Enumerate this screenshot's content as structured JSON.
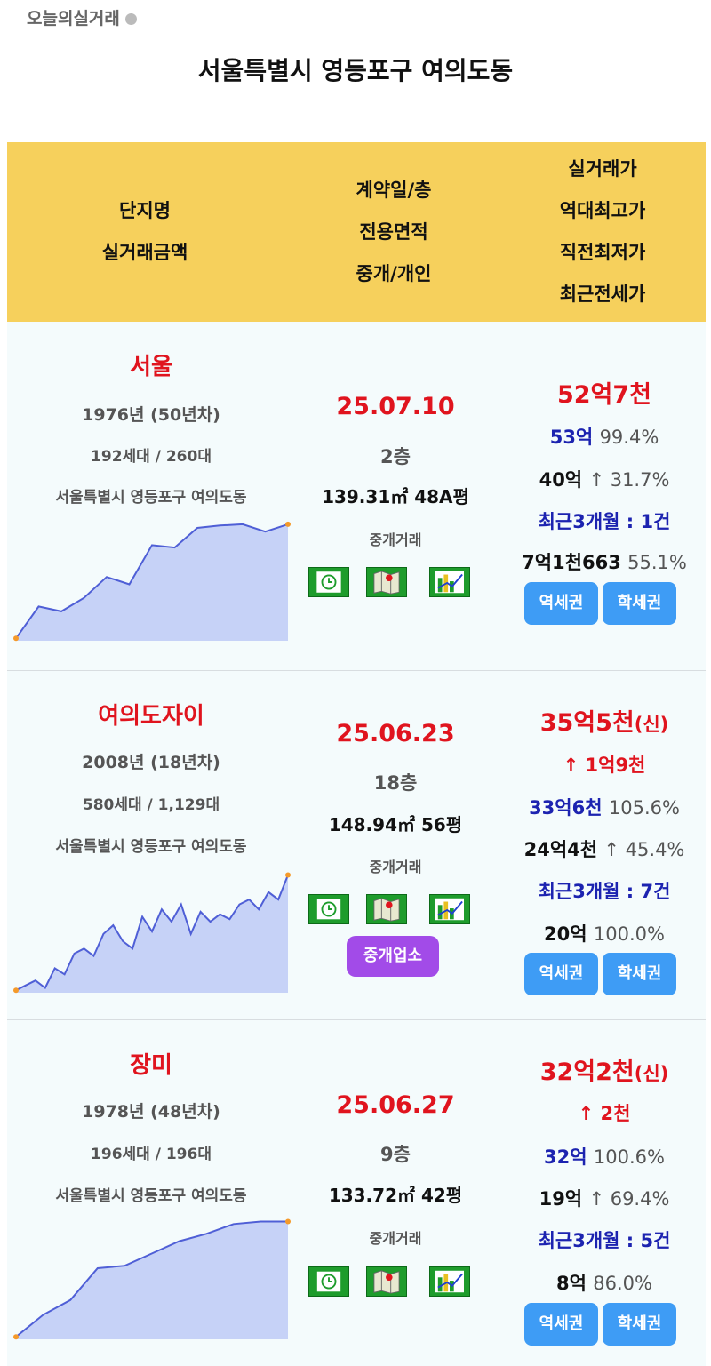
{
  "brand": "오늘의실거래",
  "title": "서울특별시 영등포구 여의도동",
  "header": {
    "col1": [
      "단지명",
      "실거래금액"
    ],
    "col2": [
      "계약일/층",
      "전용면적",
      "중개/개인"
    ],
    "col3": [
      "실거래가",
      "역대최고가",
      "직전최저가",
      "최근전세가"
    ]
  },
  "buttons": {
    "station": "역세권",
    "school": "학세권",
    "broker": "중개업소"
  },
  "icons": [
    "clock-icon",
    "map-icon",
    "chart-icon"
  ],
  "colors": {
    "header_bg": "#f6d05c",
    "accent_red": "#e0141e",
    "accent_blue": "#1c23b0",
    "button_blue": "#3e9cf5",
    "button_purple": "#a24be8",
    "icon_green": "#1e9c2c"
  },
  "rows": [
    {
      "name": "서울",
      "year": "1976년 (50년차)",
      "households": "192세대 / 260대",
      "address": "서울특별시 영등포구 여의도동",
      "date": "25.07.10",
      "floor": "2층",
      "area": "139.31㎡ 48A평",
      "type": "중개거래",
      "price": "52억7천",
      "price_suffix": "",
      "change": "",
      "high_amount": "53억",
      "high_ratio": "99.4%",
      "low_amount": "40억",
      "low_ratio": "↑ 31.7%",
      "recent": "최근3개월 : 1건",
      "jeonse_amount": "7억1천663",
      "jeonse_ratio": "55.1%",
      "trend": [
        2,
        28,
        24,
        35,
        52,
        46,
        78,
        76,
        92,
        94,
        95,
        89,
        95
      ]
    },
    {
      "name": "여의도자이",
      "year": "2008년 (18년차)",
      "households": "580세대 / 1,129대",
      "address": "서울특별시 영등포구 여의도동",
      "date": "25.06.23",
      "floor": "18층",
      "area": "148.94㎡ 56평",
      "type": "중개거래",
      "price": "35억5천",
      "price_suffix": "(신)",
      "change": "↑ 1억9천",
      "high_amount": "33억6천",
      "high_ratio": "105.6%",
      "low_amount": "24억4천",
      "low_ratio": "↑ 45.4%",
      "recent": "최근3개월 : 7건",
      "jeonse_amount": "20억",
      "jeonse_ratio": "100.0%",
      "trend": [
        2,
        6,
        10,
        4,
        20,
        15,
        32,
        36,
        30,
        48,
        55,
        42,
        36,
        62,
        50,
        68,
        58,
        72,
        48,
        66,
        58,
        64,
        60,
        72,
        76,
        68,
        82,
        76,
        96
      ]
    },
    {
      "name": "장미",
      "year": "1978년 (48년차)",
      "households": "196세대 / 196대",
      "address": "서울특별시 영등포구 여의도동",
      "date": "25.06.27",
      "floor": "9층",
      "area": "133.72㎡ 42평",
      "type": "중개거래",
      "price": "32억2천",
      "price_suffix": "(신)",
      "change": "↑ 2천",
      "high_amount": "32억",
      "high_ratio": "100.6%",
      "low_amount": "19억",
      "low_ratio": "↑ 69.4%",
      "recent": "최근3개월 : 5건",
      "jeonse_amount": "8억",
      "jeonse_ratio": "86.0%",
      "trend": [
        2,
        20,
        32,
        58,
        60,
        70,
        80,
        86,
        94,
        96,
        96
      ]
    }
  ]
}
